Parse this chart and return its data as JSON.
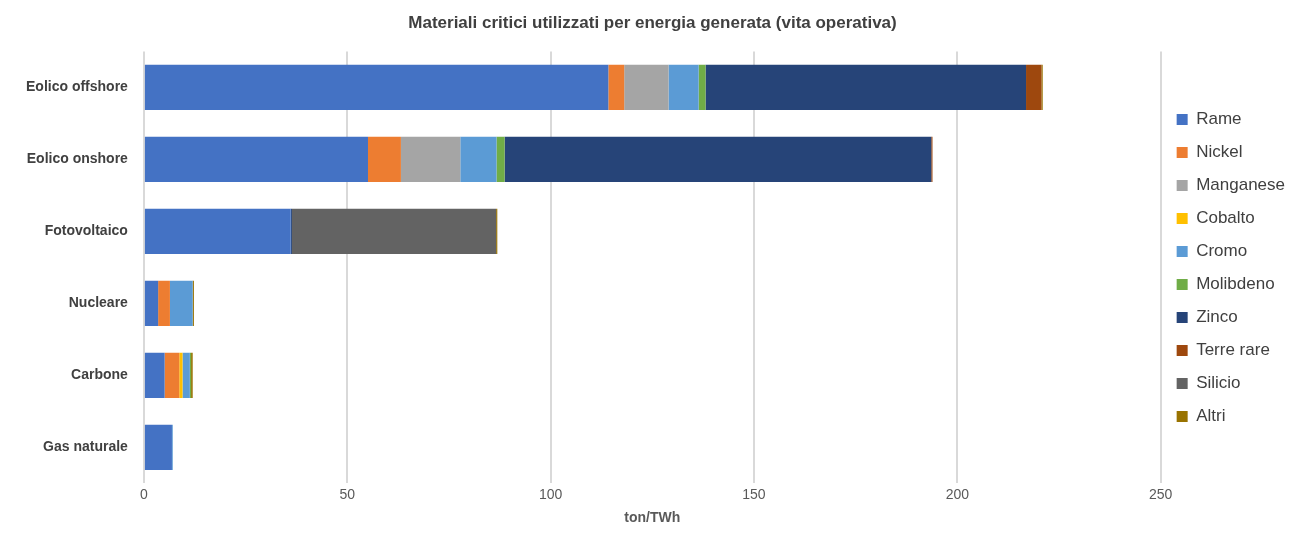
{
  "chart_data": {
    "type": "bar",
    "orientation": "horizontal",
    "stacked": true,
    "title": "Materiali critici utilizzati per energia generata (vita operativa)",
    "xlabel": "ton/TWh",
    "categories": [
      "Eolico offshore",
      "Eolico onshore",
      "Fotovoltaico",
      "Nucleare",
      "Carbone",
      "Gas naturale"
    ],
    "series": [
      {
        "name": "Rame",
        "color": "#4472c4",
        "values": [
          114.2,
          55.1,
          36.1,
          3.5,
          5.1,
          6.9
        ]
      },
      {
        "name": "Nickel",
        "color": "#ed7d31",
        "values": [
          3.9,
          8.1,
          0,
          2.9,
          3.6,
          0
        ]
      },
      {
        "name": "Manganese",
        "color": "#a5a5a5",
        "values": [
          10.9,
          14.6,
          0,
          null,
          0,
          0
        ]
      },
      {
        "name": "Cobalto",
        "color": "#ffc000",
        "values": [
          0,
          0,
          0,
          0,
          0.8,
          0
        ]
      },
      {
        "name": "Cromo",
        "color": "#5b9bd5",
        "values": [
          7.4,
          8.9,
          0,
          5.6,
          1.8,
          0.2
        ]
      },
      {
        "name": "Molibdeno",
        "color": "#70ad47",
        "values": [
          1.7,
          2.0,
          0,
          0,
          0.3,
          0
        ]
      },
      {
        "name": "Zinco",
        "color": "#264478",
        "values": [
          78.8,
          104.9,
          0.3,
          0,
          0,
          0
        ]
      },
      {
        "name": "Terre rare",
        "color": "#9e480e",
        "values": [
          3.8,
          0.3,
          0,
          0,
          0,
          0
        ]
      },
      {
        "name": "Silicio",
        "color": "#636363",
        "values": [
          0,
          0,
          50.2,
          0,
          0,
          0
        ]
      },
      {
        "name": "Altri",
        "color": "#997300",
        "values": [
          0.3,
          0,
          0.3,
          0.3,
          0.4,
          0
        ]
      }
    ],
    "xlim": [
      0,
      250
    ],
    "xticks": [
      0,
      50,
      100,
      150,
      200,
      250
    ],
    "grid": "x",
    "legend": "right"
  }
}
